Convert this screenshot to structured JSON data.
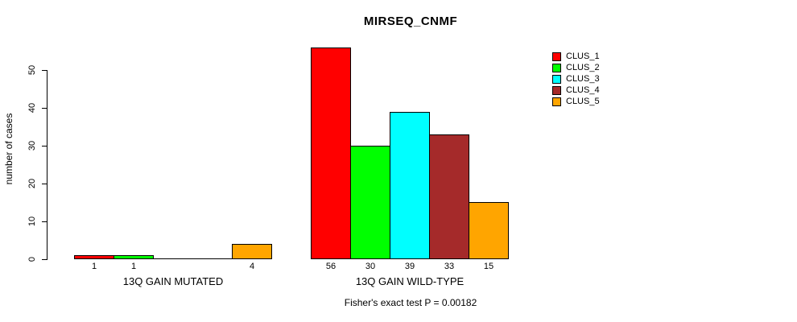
{
  "chart_data": {
    "type": "bar",
    "title": "MIRSEQ_CNMF",
    "ylabel": "number of cases",
    "xlabel": "",
    "ylim": [
      0,
      50
    ],
    "yticks": [
      0,
      10,
      20,
      30,
      40,
      50
    ],
    "grid": false,
    "legend_position": "top-right",
    "categories": [
      "13Q GAIN MUTATED",
      "13Q GAIN WILD-TYPE"
    ],
    "series": [
      {
        "name": "CLUS_1",
        "color": "#ff0000",
        "values": [
          1,
          56
        ]
      },
      {
        "name": "CLUS_2",
        "color": "#00ff00",
        "values": [
          1,
          30
        ]
      },
      {
        "name": "CLUS_3",
        "color": "#00ffff",
        "values": [
          0,
          39
        ]
      },
      {
        "name": "CLUS_4",
        "color": "#a52a2a",
        "values": [
          0,
          33
        ]
      },
      {
        "name": "CLUS_5",
        "color": "#ffa500",
        "values": [
          4,
          15
        ]
      }
    ],
    "bar_value_labels_shown": true,
    "zero_value_labels_hidden": true,
    "annotation": "Fisher's exact test P = 0.00182",
    "axis_color": "#000000",
    "background_color": "#ffffff"
  }
}
